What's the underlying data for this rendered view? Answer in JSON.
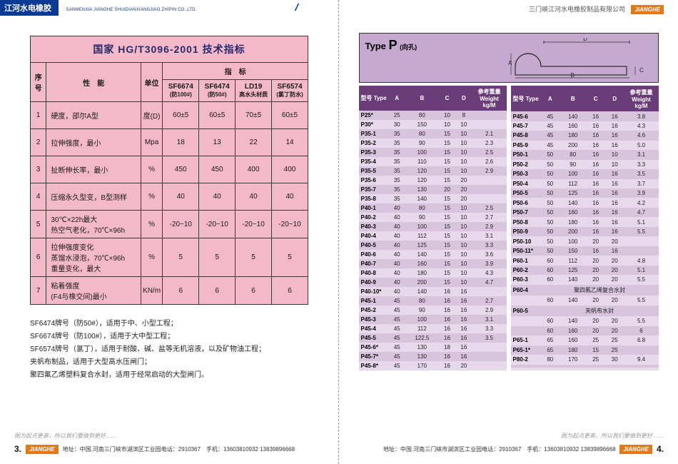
{
  "header": {
    "left_logo": "江河水电橡胶",
    "left_sub": "SANMENXIA JIANGHE SHUIDIANXIANGJIAO ZHIPIN CO.,LTD.",
    "right_company": "三门峡江河水电橡胶制品有限公司",
    "jh_tag": "JIANGHE"
  },
  "tech_table": {
    "title": "国家 HG/T3096-2001 技术指标",
    "col_seq": "序号",
    "col_prop": "性　能",
    "col_unit": "单位",
    "col_index": "指　标",
    "models": [
      "SF6674",
      "SF6474",
      "LD19",
      "SF6574"
    ],
    "models_sub": [
      "(防100#)",
      "(防50#)",
      "高水头材质",
      "(氯丁防水)"
    ],
    "rows": [
      {
        "n": "1",
        "prop": "硬度，邵尔A型",
        "unit": "度(D)",
        "v": [
          "60±5",
          "60±5",
          "70±5",
          "60±5"
        ]
      },
      {
        "n": "2",
        "prop": "拉伸强度，最小",
        "unit": "Mpa",
        "v": [
          "18",
          "13",
          "22",
          "14"
        ]
      },
      {
        "n": "3",
        "prop": "扯断伸长率，最小",
        "unit": "%",
        "v": [
          "450",
          "450",
          "400",
          "400"
        ]
      },
      {
        "n": "4",
        "prop": "压缩永久型变，B型测样",
        "unit": "%",
        "v": [
          "40",
          "40",
          "40",
          "40"
        ]
      },
      {
        "n": "5",
        "prop": "30℃×22h最大\n热空气老化，70℃×96h",
        "unit": "%",
        "v": [
          "-20~10",
          "-20~10",
          "-20~10",
          "-20~10"
        ]
      },
      {
        "n": "6",
        "prop": "拉伸强度变化\n蒸馏水浸泡，70℃×96h\n重量变化，最大",
        "unit": "%",
        "v": [
          "5",
          "5",
          "5",
          "5"
        ]
      },
      {
        "n": "7",
        "prop": "粘着强度\n(F4与橡交间)最小",
        "unit": "KN/m",
        "v": [
          "6",
          "6",
          "6",
          "6"
        ]
      }
    ]
  },
  "notes": [
    "SF6474牌号（防50#），适用于中、小型工程；",
    "SF6674牌号（防100#），适用于大中型工程；",
    "SF6574牌号（氯丁），适用于耐酸、碱、盐等无机溶液，以及矿物油工程；",
    "夹帆布制品，适用于大型高水压闸门；",
    "聚四氟乙烯塑料复合水封，适用于经常启动的大型闸门。"
  ],
  "typep": {
    "title_pre": "Type",
    "title_big": "P",
    "title_note": "(向孔)",
    "diagram_labels": {
      "A": "A",
      "B": "B",
      "C": "C",
      "D": "D"
    },
    "head": [
      "型号 Type",
      "A",
      "B",
      "C",
      "D",
      "参考重量\nWeight kg/M"
    ],
    "left_rows": [
      [
        "P25*",
        "25",
        "80",
        "10",
        "8",
        ""
      ],
      [
        "P30*",
        "30",
        "150",
        "10",
        "10",
        ""
      ],
      [
        "P35-1",
        "35",
        "80",
        "15",
        "10",
        "2.1"
      ],
      [
        "P35-2",
        "35",
        "90",
        "15",
        "10",
        "2.3"
      ],
      [
        "P35-3",
        "35",
        "100",
        "15",
        "10",
        "2.5"
      ],
      [
        "P35-4",
        "35",
        "110",
        "15",
        "10",
        "2.6"
      ],
      [
        "P35-5",
        "35",
        "120",
        "15",
        "10",
        "2.9"
      ],
      [
        "P35-6",
        "35",
        "120",
        "15",
        "20",
        ""
      ],
      [
        "P35-7",
        "35",
        "130",
        "20",
        "20",
        ""
      ],
      [
        "P35-8",
        "35",
        "140",
        "15",
        "20",
        ""
      ],
      [
        "P40-1",
        "40",
        "80",
        "15",
        "10",
        "2.5"
      ],
      [
        "P40-2",
        "40",
        "90",
        "15",
        "10",
        "2.7"
      ],
      [
        "P40-3",
        "40",
        "100",
        "15",
        "10",
        "2.9"
      ],
      [
        "P40-4",
        "40",
        "112",
        "15",
        "10",
        "3.1"
      ],
      [
        "P40-5",
        "40",
        "125",
        "15",
        "10",
        "3.3"
      ],
      [
        "P40-6",
        "40",
        "140",
        "15",
        "10",
        "3.6"
      ],
      [
        "P40-7",
        "40",
        "160",
        "15",
        "10",
        "3.9"
      ],
      [
        "P40-8",
        "40",
        "180",
        "15",
        "10",
        "4.3"
      ],
      [
        "P40-9",
        "40",
        "200",
        "15",
        "10",
        "4.7"
      ],
      [
        "P40-10*",
        "40",
        "140",
        "16",
        "16",
        ""
      ],
      [
        "P45-1",
        "45",
        "80",
        "16",
        "16",
        "2.7"
      ],
      [
        "P45-2",
        "45",
        "90",
        "16",
        "16",
        "2.9"
      ],
      [
        "P45-3",
        "45",
        "100",
        "16",
        "16",
        "3.1"
      ],
      [
        "P45-4",
        "45",
        "112",
        "16",
        "16",
        "3.3"
      ],
      [
        "P45-5",
        "45",
        "122.5",
        "16",
        "16",
        "3.5"
      ],
      [
        "P45-6*",
        "45",
        "130",
        "18",
        "16",
        ""
      ],
      [
        "P45-7*",
        "45",
        "130",
        "16",
        "16",
        ""
      ],
      [
        "P45-8*",
        "45",
        "170",
        "16",
        "20",
        ""
      ]
    ],
    "right_rows": [
      [
        "P45-6",
        "45",
        "140",
        "16",
        "16",
        "3.8"
      ],
      [
        "P45-7",
        "45",
        "160",
        "16",
        "16",
        "4.3"
      ],
      [
        "P45-8",
        "45",
        "180",
        "16",
        "16",
        "4.6"
      ],
      [
        "P45-9",
        "45",
        "200",
        "16",
        "16",
        "5.0"
      ],
      [
        "P50-1",
        "50",
        "80",
        "16",
        "10",
        "3.1"
      ],
      [
        "P50-2",
        "50",
        "90",
        "16",
        "10",
        "3.3"
      ],
      [
        "P50-3",
        "50",
        "100",
        "16",
        "16",
        "3.5"
      ],
      [
        "P50-4",
        "50",
        "112",
        "16",
        "16",
        "3.7"
      ],
      [
        "P50-5",
        "50",
        "125",
        "16",
        "16",
        "3.9"
      ],
      [
        "P50-6",
        "50",
        "140",
        "16",
        "16",
        "4.2"
      ],
      [
        "P50-7",
        "50",
        "160",
        "16",
        "16",
        "4.7"
      ],
      [
        "P50-8",
        "50",
        "180",
        "16",
        "16",
        "5.1"
      ],
      [
        "P50-9",
        "50",
        "200",
        "16",
        "16",
        "5.5"
      ],
      [
        "P50-10",
        "50",
        "100",
        "20",
        "20",
        ""
      ],
      [
        "P50-11*",
        "50",
        "150",
        "16",
        "16",
        ""
      ],
      [
        "P60-1",
        "60",
        "112",
        "20",
        "20",
        "4.8"
      ],
      [
        "P60-2",
        "60",
        "125",
        "20",
        "20",
        "5.1"
      ],
      [
        "P60-3",
        "60",
        "140",
        "20",
        "20",
        "5.5"
      ],
      [
        "P60-4",
        "聚四氟乙烯复合水封",
        "",
        "",
        "",
        ""
      ],
      [
        "",
        "60",
        "140",
        "20",
        "20",
        "5.5"
      ],
      [
        "P60-5",
        "夹帆布水封",
        "",
        "",
        "",
        ""
      ],
      [
        "",
        "60",
        "140",
        "20",
        "20",
        "5.5"
      ],
      [
        "",
        "60",
        "160",
        "20",
        "20",
        "6"
      ],
      [
        "P65-1",
        "65",
        "160",
        "25",
        "25",
        "6.8"
      ],
      [
        "P65-1*",
        "65",
        "180",
        "15",
        "25",
        ""
      ],
      [
        "P80-2",
        "80",
        "170",
        "25",
        "30",
        "9.4"
      ],
      [
        "",
        "",
        "",
        "",
        "",
        ""
      ],
      [
        "",
        "",
        "",
        "",
        "",
        ""
      ]
    ]
  },
  "footer": {
    "slogan": "图为起点更高，所以我们要做到更好……",
    "addr": "地址：中国.河南三门峡市湖滨区工业园电话：2910367　手机：13603810932 13839896668",
    "left_pg": "3.",
    "right_pg": "4."
  },
  "colors": {
    "header_blue": "#0a3a93",
    "orange": "#e07a1a",
    "table_pink": "#f3b9c8",
    "typep_hdr": "#c6a9cf",
    "typep_th": "#6a3d78",
    "typep_row_a": "#e8d8eb",
    "typep_row_b": "#d9c4de"
  }
}
